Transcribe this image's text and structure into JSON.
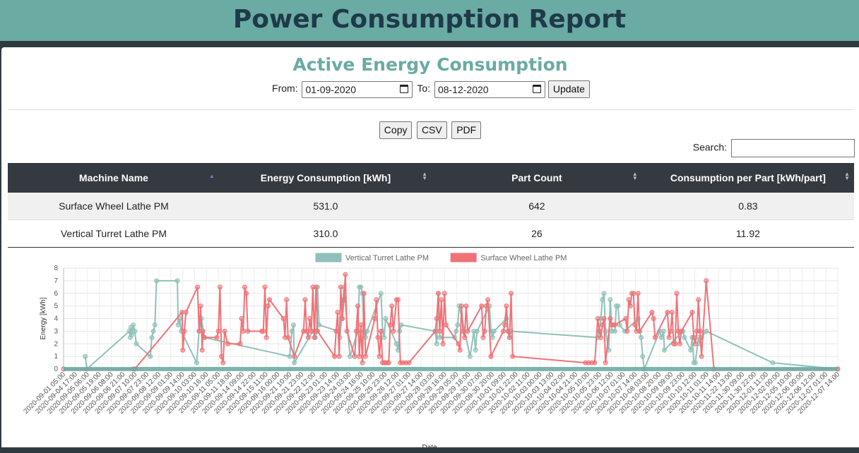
{
  "header": {
    "title": "Power Consumption Report"
  },
  "section": {
    "title": "Active Energy Consumption"
  },
  "filter": {
    "from_label": "From:",
    "from_value": "01-09-2020",
    "to_label": "To:",
    "to_value": "08-12-2020",
    "update_label": "Update"
  },
  "export": {
    "copy": "Copy",
    "csv": "CSV",
    "pdf": "PDF"
  },
  "search": {
    "label": "Search:"
  },
  "table": {
    "columns": [
      "Machine Name",
      "Energy Consumption [kWh]",
      "Part Count",
      "Consumption per Part [kWh/part]"
    ],
    "rows": [
      [
        "Surface Wheel Lathe PM",
        "531.0",
        "642",
        "0.83"
      ],
      [
        "Vertical Turret Lathe PM",
        "310.0",
        "26",
        "11.92"
      ]
    ]
  },
  "chart_data": {
    "type": "line",
    "xlabel": "Date",
    "ylabel": "Energy [kWh]",
    "ylim": [
      0,
      8
    ],
    "yticks": [
      0,
      1,
      2,
      3,
      4,
      5,
      6,
      7,
      8
    ],
    "grid": true,
    "legend_position": "top",
    "colors": {
      "Vertical Turret Lathe PM": "#8fc1ba",
      "Surface Wheel Lathe PM": "#f07277"
    },
    "categories": [
      "2020-09-01 05:00",
      "2020-09-04 17:00",
      "2020-09-05 06:00",
      "2020-09-05 19:00",
      "2020-09-06 08:00",
      "2020-09-06 21:00",
      "2020-09-07 10:00",
      "2020-09-07 23:00",
      "2020-09-08 12:00",
      "2020-09-09 01:00",
      "2020-09-09 14:00",
      "2020-09-10 03:00",
      "2020-09-10 16:00",
      "2020-09-11 05:00",
      "2020-09-11 18:00",
      "2020-09-14 09:00",
      "2020-09-14 22:00",
      "2020-09-15 11:00",
      "2020-09-16 00:00",
      "2020-09-21 10:00",
      "2020-09-21 23:00",
      "2020-09-22 12:00",
      "2020-09-23 01:00",
      "2020-09-23 14:00",
      "2020-09-24 03:00",
      "2020-09-24 16:00",
      "2020-09-25 10:00",
      "2020-09-25 23:00",
      "2020-09-26 12:00",
      "2020-09-27 01:00",
      "2020-09-27 14:00",
      "2020-09-28 03:00",
      "2020-09-28 16:00",
      "2020-09-29 05:00",
      "2020-09-29 18:00",
      "2020-09-30 07:00",
      "2020-09-30 20:00",
      "2020-10-01 09:00",
      "2020-10-01 22:00",
      "2020-10-02 11:00",
      "2020-10-03 00:00",
      "2020-10-03 13:00",
      "2020-10-04 02:00",
      "2020-10-04 21:00",
      "2020-10-05 10:00",
      "2020-10-05 23:00",
      "2020-10-06 12:00",
      "2020-10-07 01:00",
      "2020-10-07 14:00",
      "2020-10-08 03:00",
      "2020-10-08 20:00",
      "2020-10-09 09:00",
      "2020-10-09 23:00",
      "2020-10-10 12:00",
      "2020-10-11 01:00",
      "2020-10-11 14:00",
      "2020-11-22 13:00",
      "2020-11-30 09:00",
      "2020-11-30 22:00",
      "2020-12-01 11:00",
      "2020-12-02 00:00",
      "2020-12-05 10:00",
      "2020-12-06 00:00",
      "2020-12-06 12:00",
      "2020-12-07 01:00",
      "2020-12-07 14:00"
    ],
    "series": [
      {
        "name": "Vertical Turret Lathe PM",
        "points": [
          [
            0.03,
            0
          ],
          [
            0.028,
            1
          ],
          [
            0.085,
            3
          ],
          [
            0.086,
            2.5
          ],
          [
            0.087,
            3.3
          ],
          [
            0.088,
            2.7
          ],
          [
            0.09,
            3.5
          ],
          [
            0.092,
            3
          ],
          [
            0.094,
            2
          ],
          [
            0.112,
            1
          ],
          [
            0.114,
            2.5
          ],
          [
            0.116,
            3
          ],
          [
            0.118,
            3.5
          ],
          [
            0.12,
            7
          ],
          [
            0.147,
            7
          ],
          [
            0.148,
            3.5
          ],
          [
            0.15,
            4
          ],
          [
            0.152,
            3
          ],
          [
            0.172,
            0.5
          ],
          [
            0.175,
            3
          ],
          [
            0.178,
            4
          ],
          [
            0.182,
            2.5
          ],
          [
            0.292,
            1
          ],
          [
            0.295,
            3
          ],
          [
            0.297,
            3.5
          ],
          [
            0.298,
            0.5
          ],
          [
            0.322,
            3
          ],
          [
            0.325,
            2.5
          ],
          [
            0.327,
            3
          ],
          [
            0.328,
            6.5
          ],
          [
            0.33,
            3.5
          ],
          [
            0.355,
            3
          ],
          [
            0.357,
            2.5
          ],
          [
            0.359,
            4
          ],
          [
            0.362,
            6.5
          ],
          [
            0.37,
            1
          ],
          [
            0.38,
            3
          ],
          [
            0.382,
            6.5
          ],
          [
            0.384,
            6.5
          ],
          [
            0.386,
            6
          ],
          [
            0.388,
            3
          ],
          [
            0.39,
            2.5
          ],
          [
            0.392,
            3
          ],
          [
            0.41,
            6
          ],
          [
            0.412,
            3
          ],
          [
            0.414,
            2.5
          ],
          [
            0.416,
            4
          ],
          [
            0.43,
            2
          ],
          [
            0.432,
            1.5
          ],
          [
            0.434,
            3
          ],
          [
            0.436,
            3.5
          ],
          [
            0.48,
            3
          ],
          [
            0.482,
            2
          ],
          [
            0.484,
            6
          ],
          [
            0.486,
            2.5
          ],
          [
            0.505,
            2.5
          ],
          [
            0.507,
            3
          ],
          [
            0.509,
            3.5
          ],
          [
            0.511,
            5
          ],
          [
            0.525,
            1
          ],
          [
            0.53,
            3
          ],
          [
            0.532,
            1.5
          ],
          [
            0.534,
            3
          ],
          [
            0.55,
            5
          ],
          [
            0.552,
            3
          ],
          [
            0.554,
            2.5
          ],
          [
            0.556,
            3
          ],
          [
            0.572,
            4
          ],
          [
            0.574,
            3
          ],
          [
            0.576,
            2.5
          ],
          [
            0.578,
            3
          ],
          [
            0.69,
            2.5
          ],
          [
            0.692,
            3
          ],
          [
            0.694,
            4
          ],
          [
            0.696,
            5.5
          ],
          [
            0.698,
            6
          ],
          [
            0.7,
            3
          ],
          [
            0.704,
            1.5
          ],
          [
            0.706,
            5.5
          ],
          [
            0.708,
            3
          ],
          [
            0.712,
            3
          ],
          [
            0.714,
            5
          ],
          [
            0.716,
            5
          ],
          [
            0.718,
            3.5
          ],
          [
            0.725,
            3
          ],
          [
            0.742,
            4
          ],
          [
            0.744,
            3
          ],
          [
            0.746,
            2.5
          ],
          [
            0.748,
            1
          ],
          [
            0.75,
            0
          ],
          [
            0.77,
            3
          ],
          [
            0.772,
            2.5
          ],
          [
            0.775,
            3
          ],
          [
            0.776,
            1.5
          ],
          [
            0.8,
            3
          ],
          [
            0.802,
            2.5
          ],
          [
            0.81,
            1.5
          ],
          [
            0.812,
            2.5
          ],
          [
            0.814,
            0.5
          ],
          [
            0.816,
            0.5
          ],
          [
            0.82,
            2.5
          ],
          [
            0.822,
            2
          ],
          [
            0.824,
            2.5
          ],
          [
            0.83,
            3
          ],
          [
            0.916,
            0.5
          ],
          [
            1,
            0
          ]
        ]
      },
      {
        "name": "Surface Wheel Lathe PM",
        "points": [
          [
            0,
            0
          ],
          [
            0.09,
            0
          ],
          [
            0.092,
            0
          ],
          [
            0.153,
            4.5
          ],
          [
            0.154,
            1.5
          ],
          [
            0.156,
            3
          ],
          [
            0.158,
            4.5
          ],
          [
            0.173,
            6.5
          ],
          [
            0.175,
            3
          ],
          [
            0.177,
            5
          ],
          [
            0.179,
            1.5
          ],
          [
            0.18,
            3
          ],
          [
            0.182,
            2.5
          ],
          [
            0.198,
            2.5
          ],
          [
            0.2,
            3
          ],
          [
            0.202,
            6.5
          ],
          [
            0.204,
            1
          ],
          [
            0.206,
            0.5
          ],
          [
            0.208,
            3
          ],
          [
            0.212,
            2
          ],
          [
            0.228,
            2
          ],
          [
            0.23,
            4
          ],
          [
            0.232,
            3
          ],
          [
            0.234,
            6.5
          ],
          [
            0.236,
            6
          ],
          [
            0.238,
            3
          ],
          [
            0.256,
            3
          ],
          [
            0.258,
            3
          ],
          [
            0.26,
            6.5
          ],
          [
            0.262,
            2.5
          ],
          [
            0.264,
            5
          ],
          [
            0.266,
            5.5
          ],
          [
            0.284,
            4
          ],
          [
            0.286,
            2.5
          ],
          [
            0.288,
            5.5
          ],
          [
            0.29,
            2.5
          ],
          [
            0.298,
            1
          ],
          [
            0.31,
            3
          ],
          [
            0.312,
            5.5
          ],
          [
            0.314,
            3
          ],
          [
            0.316,
            2.5
          ],
          [
            0.318,
            4
          ],
          [
            0.32,
            3
          ],
          [
            0.322,
            6.5
          ],
          [
            0.324,
            2.5
          ],
          [
            0.326,
            6.5
          ],
          [
            0.328,
            3
          ],
          [
            0.35,
            1
          ],
          [
            0.352,
            3
          ],
          [
            0.354,
            4.5
          ],
          [
            0.356,
            1
          ],
          [
            0.358,
            6.5
          ],
          [
            0.36,
            4
          ],
          [
            0.362,
            5.5
          ],
          [
            0.364,
            7.5
          ],
          [
            0.366,
            3
          ],
          [
            0.376,
            1
          ],
          [
            0.378,
            3
          ],
          [
            0.38,
            5
          ],
          [
            0.382,
            1
          ],
          [
            0.384,
            3.5
          ],
          [
            0.386,
            0.5
          ],
          [
            0.388,
            6
          ],
          [
            0.39,
            1
          ],
          [
            0.402,
            4
          ],
          [
            0.404,
            5.5
          ],
          [
            0.406,
            2.5
          ],
          [
            0.408,
            1
          ],
          [
            0.41,
            3
          ],
          [
            0.412,
            0.5
          ],
          [
            0.414,
            0.5
          ],
          [
            0.416,
            0.5
          ],
          [
            0.418,
            0.5
          ],
          [
            0.42,
            0.5
          ],
          [
            0.422,
            3.5
          ],
          [
            0.424,
            5
          ],
          [
            0.426,
            3
          ],
          [
            0.43,
            5.5
          ],
          [
            0.432,
            5.5
          ],
          [
            0.435,
            0.5
          ],
          [
            0.438,
            0.5
          ],
          [
            0.442,
            0.5
          ],
          [
            0.446,
            0.5
          ],
          [
            0.48,
            3
          ],
          [
            0.482,
            4
          ],
          [
            0.484,
            6
          ],
          [
            0.486,
            3
          ],
          [
            0.488,
            5.5
          ],
          [
            0.49,
            2
          ],
          [
            0.492,
            6
          ],
          [
            0.494,
            3.5
          ],
          [
            0.51,
            2
          ],
          [
            0.512,
            1.5
          ],
          [
            0.514,
            5
          ],
          [
            0.516,
            3
          ],
          [
            0.518,
            2.5
          ],
          [
            0.52,
            5
          ],
          [
            0.522,
            3
          ],
          [
            0.54,
            5
          ],
          [
            0.542,
            2.5
          ],
          [
            0.544,
            3
          ],
          [
            0.546,
            5
          ],
          [
            0.548,
            5.5
          ],
          [
            0.552,
            1
          ],
          [
            0.568,
            3
          ],
          [
            0.57,
            3.5
          ],
          [
            0.572,
            5
          ],
          [
            0.574,
            3
          ],
          [
            0.576,
            2.5
          ],
          [
            0.578,
            6
          ],
          [
            0.58,
            1
          ],
          [
            0.674,
            0.5
          ],
          [
            0.678,
            0.5
          ],
          [
            0.682,
            0.5
          ],
          [
            0.686,
            0.5
          ],
          [
            0.69,
            4
          ],
          [
            0.692,
            3
          ],
          [
            0.694,
            2.5
          ],
          [
            0.696,
            3.5
          ],
          [
            0.698,
            4
          ],
          [
            0.7,
            0.5
          ],
          [
            0.706,
            4
          ],
          [
            0.708,
            3.5
          ],
          [
            0.71,
            3.5
          ],
          [
            0.712,
            3.5
          ],
          [
            0.726,
            4
          ],
          [
            0.728,
            3
          ],
          [
            0.73,
            5.5
          ],
          [
            0.732,
            5
          ],
          [
            0.734,
            6
          ],
          [
            0.736,
            6
          ],
          [
            0.738,
            3.5
          ],
          [
            0.74,
            3
          ],
          [
            0.742,
            6
          ],
          [
            0.744,
            3
          ],
          [
            0.76,
            4.5
          ],
          [
            0.762,
            4
          ],
          [
            0.764,
            2.5
          ],
          [
            0.78,
            4.5
          ],
          [
            0.782,
            2.5
          ],
          [
            0.784,
            3
          ],
          [
            0.786,
            4.5
          ],
          [
            0.788,
            2
          ],
          [
            0.79,
            2
          ],
          [
            0.792,
            6
          ],
          [
            0.794,
            3
          ],
          [
            0.796,
            2
          ],
          [
            0.798,
            3
          ],
          [
            0.812,
            4.5
          ],
          [
            0.814,
            2.5
          ],
          [
            0.816,
            2
          ],
          [
            0.818,
            3
          ],
          [
            0.82,
            5.5
          ],
          [
            0.822,
            3
          ],
          [
            0.824,
            1
          ],
          [
            0.84,
            0
          ],
          [
            0.83,
            7
          ],
          [
            1,
            0
          ]
        ]
      }
    ]
  }
}
